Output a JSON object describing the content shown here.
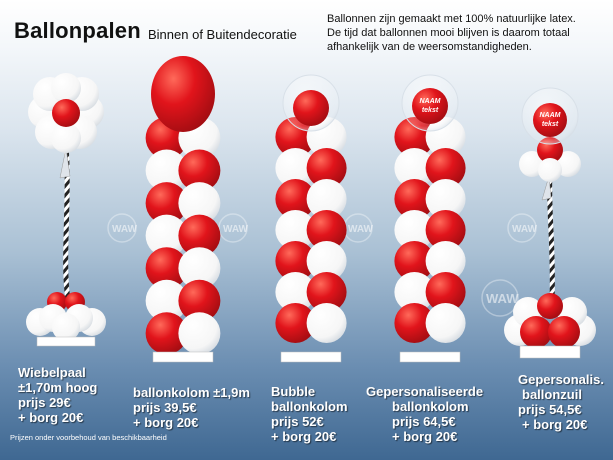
{
  "header": {
    "title": "Ballonpalen",
    "subtitle": "Binnen of Buitendecoratie",
    "intro_lines": [
      "Ballonnen zijn gemaakt met 100% natuurlijke latex.",
      "De tijd dat ballonnen mooi blijven is daarom totaal",
      "afhankelijk van de weersomstandigheden."
    ]
  },
  "products": [
    {
      "lines": [
        "Wiebelpaal",
        "±1,70m hoog",
        "prijs 29€",
        "+ borg 20€"
      ]
    },
    {
      "lines": [
        "ballonkolom ±1,9m",
        "prijs 39,5€",
        "+ borg 20€"
      ]
    },
    {
      "lines": [
        "Bubble",
        "ballonkolom",
        "prijs 52€",
        "+ borg 20€"
      ]
    },
    {
      "lines": [
        "Gepersonaliseerde",
        "ballonkolom",
        "prijs 64,5€",
        "+ borg 20€"
      ]
    },
    {
      "lines": [
        "Gepersonalis.",
        "ballonzuil",
        "prijs 54,5€",
        "+ borg 20€"
      ]
    }
  ],
  "bubble_text": [
    "NAAM",
    "tekst"
  ],
  "watermark": "WAW",
  "footnote": "Prijzen onder voorbehoud van beschikbaarheid",
  "colors": {
    "red": "#e1141b",
    "white": "#ffffff",
    "text_shadow": "#000000"
  }
}
